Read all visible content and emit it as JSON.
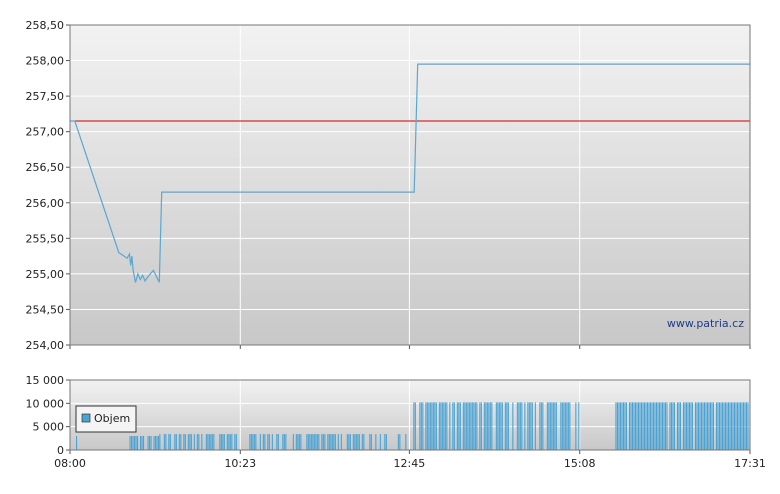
{
  "chart_data": [
    {
      "type": "line",
      "panel": "price",
      "ylim": [
        254.0,
        258.5
      ],
      "y_ticks": [
        "254,00",
        "254,50",
        "255,00",
        "255,50",
        "256,00",
        "256,50",
        "257,00",
        "257,50",
        "258,00",
        "258,50"
      ],
      "y_tick_values": [
        254.0,
        254.5,
        255.0,
        255.5,
        256.0,
        256.5,
        257.0,
        257.5,
        258.0,
        258.5
      ],
      "x_range": [
        "08:00",
        "17:31"
      ],
      "reference_line": {
        "value": 257.15,
        "color": "#cc0000"
      },
      "series": [
        {
          "color": "#5aa7d0",
          "points": [
            [
              "08:00",
              257.15
            ],
            [
              "08:04",
              257.15
            ],
            [
              "08:41",
              255.3
            ],
            [
              "08:48",
              255.22
            ],
            [
              "08:50",
              255.28
            ],
            [
              "08:51",
              255.12
            ],
            [
              "08:52",
              255.25
            ],
            [
              "08:53",
              255.05
            ],
            [
              "08:55",
              254.88
            ],
            [
              "08:57",
              255.0
            ],
            [
              "08:59",
              254.92
            ],
            [
              "09:01",
              254.98
            ],
            [
              "09:03",
              254.9
            ],
            [
              "09:05",
              254.95
            ],
            [
              "09:10",
              255.05
            ],
            [
              "09:15",
              254.88
            ],
            [
              "09:17",
              256.15
            ],
            [
              "12:49",
              256.15
            ],
            [
              "12:52",
              257.95
            ],
            [
              "17:31",
              257.95
            ]
          ]
        }
      ],
      "watermark": "www.patria.cz",
      "grid": true
    },
    {
      "type": "bar",
      "panel": "volume",
      "ylim": [
        0,
        15000
      ],
      "y_ticks": [
        "0",
        "5 000",
        "10 000",
        "15 000"
      ],
      "y_tick_values": [
        0,
        5000,
        10000,
        15000
      ],
      "x_ticks": [
        "08:00",
        "10:23",
        "12:45",
        "15:08",
        "17:31"
      ],
      "legend": {
        "label": "Objem",
        "color": "#4aa3d4",
        "placement": "top-left"
      },
      "segments": [
        {
          "from": "08:05",
          "to": "08:06",
          "value": 3000,
          "density": 1.0
        },
        {
          "from": "08:50",
          "to": "09:15",
          "value": 3000,
          "density": 0.6
        },
        {
          "from": "09:15",
          "to": "12:44",
          "value": 3400,
          "density": 0.5
        },
        {
          "from": "12:47",
          "to": "15:08",
          "value": 10200,
          "density": 0.7
        },
        {
          "from": "15:38",
          "to": "17:30",
          "value": 10200,
          "density": 0.9
        }
      ]
    }
  ]
}
